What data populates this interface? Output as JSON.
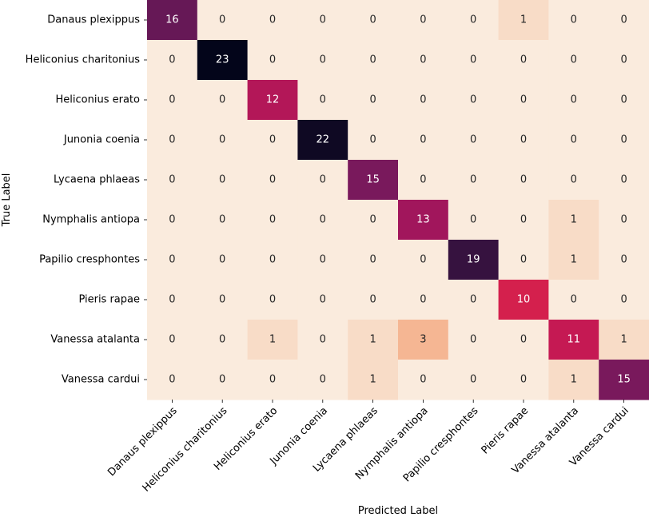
{
  "chart_data": {
    "type": "heatmap",
    "title": "",
    "xlabel": "Predicted Label",
    "ylabel": "True Label",
    "x_categories": [
      "Danaus plexippus",
      "Heliconius charitonius",
      "Heliconius erato",
      "Junonia coenia",
      "Lycaena phlaeas",
      "Nymphalis antiopa",
      "Papilio cresphontes",
      "Pieris rapae",
      "Vanessa atalanta",
      "Vanessa cardui"
    ],
    "y_categories": [
      "Danaus plexippus",
      "Heliconius charitonius",
      "Heliconius erato",
      "Junonia coenia",
      "Lycaena phlaeas",
      "Nymphalis antiopa",
      "Papilio cresphontes",
      "Pieris rapae",
      "Vanessa atalanta",
      "Vanessa cardui"
    ],
    "values": [
      [
        16,
        0,
        0,
        0,
        0,
        0,
        0,
        1,
        0,
        0
      ],
      [
        0,
        23,
        0,
        0,
        0,
        0,
        0,
        0,
        0,
        0
      ],
      [
        0,
        0,
        12,
        0,
        0,
        0,
        0,
        0,
        0,
        0
      ],
      [
        0,
        0,
        0,
        22,
        0,
        0,
        0,
        0,
        0,
        0
      ],
      [
        0,
        0,
        0,
        0,
        15,
        0,
        0,
        0,
        0,
        0
      ],
      [
        0,
        0,
        0,
        0,
        0,
        13,
        0,
        0,
        1,
        0
      ],
      [
        0,
        0,
        0,
        0,
        0,
        0,
        19,
        0,
        1,
        0
      ],
      [
        0,
        0,
        0,
        0,
        0,
        0,
        0,
        10,
        0,
        0
      ],
      [
        0,
        0,
        1,
        0,
        1,
        3,
        0,
        0,
        11,
        1
      ],
      [
        0,
        0,
        0,
        0,
        1,
        0,
        0,
        0,
        1,
        15
      ]
    ],
    "value_range": [
      0,
      23
    ],
    "colormap": "rocket_r",
    "colorbar": false,
    "grid": false,
    "annotations": true
  }
}
